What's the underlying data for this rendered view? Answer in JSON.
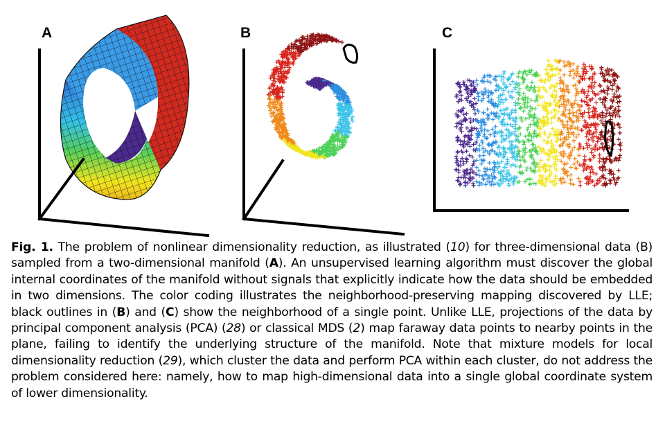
{
  "panels": {
    "a": {
      "label": "A",
      "title": "3D manifold (swiss roll surface)"
    },
    "b": {
      "label": "B",
      "title": "Sampled data points in 3D"
    },
    "c": {
      "label": "C",
      "title": "LLE two-dimensional embedding"
    }
  },
  "colors": {
    "violet": "#4b2a8e",
    "blue": "#2f8fe0",
    "cyan": "#3ec3e8",
    "green": "#4fd05a",
    "yellow": "#f2e51e",
    "orange": "#f08a1c",
    "red": "#d7261d",
    "darkred": "#8e1414",
    "outline": "#000000"
  },
  "caption": {
    "fig_label": "Fig. 1.",
    "seg1": " The problem of nonlinear dimensionality reduction, as illustrated (",
    "ref1": "10",
    "seg2": ") for three-dimensional data (B) sampled from a two-dimensional manifold (",
    "ref_a": "A",
    "seg3": "). An unsupervised learning algorithm must discover the global internal coordinates of the manifold without signals that explicitly indicate how the data should be embedded in two dimensions. The color coding illustrates the neighborhood-preserving mapping discovered by LLE; black outlines in (",
    "ref_b": "B",
    "seg4": ") and (",
    "ref_c": "C",
    "seg5": ") show the neighborhood of a single point. Unlike LLE, projections of the data by principal component analysis (PCA) (",
    "ref2": "28",
    "seg6": ") or classical MDS (",
    "ref3": "2",
    "seg7": ") map faraway data points to nearby points in the plane, failing to identify the underlying structure of the manifold. Note that mixture models for local dimensionality reduction (",
    "ref4": "29",
    "seg8": "), which cluster the data and perform PCA within each cluster, do not address the problem considered here: namely, how to map high-dimensional data into a single global coordinate system of lower dimensionality."
  }
}
